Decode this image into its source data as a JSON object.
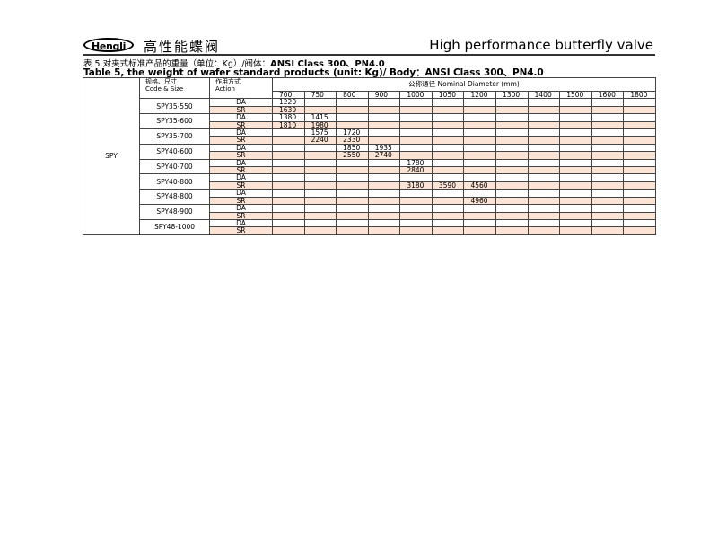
{
  "header": {
    "logo": "Hengli",
    "cn_title": "高性能蝶阀",
    "en_title": "High performance butterfly valve"
  },
  "caption": {
    "cn_prefix": "表 5 对夹式标准产品的重量（单位：Kg）/阀体：",
    "cn_suffix": "ANSI Class 300、PN4.0",
    "en": "Table 5, the weight of wafer standard products (unit: Kg)/ Body：ANSI Class 300、PN4.0"
  },
  "table": {
    "series": "SPY",
    "code_header_cn": "规格、尺寸",
    "code_header_en": "Code & Size",
    "action_header_cn": "作用方式",
    "action_header_en": "Action",
    "nd_header": "公称通径   Nominal Diameter (mm)",
    "sizes": [
      "700",
      "750",
      "800",
      "900",
      "1000",
      "1050",
      "1200",
      "1300",
      "1400",
      "1500",
      "1600",
      "1800"
    ],
    "colors": {
      "sr_row": "#fbe4d5"
    },
    "models": [
      {
        "code": "SPY35-550",
        "rows": [
          {
            "action": "DA",
            "values": [
              "1220",
              "",
              "",
              "",
              "",
              "",
              "",
              "",
              "",
              "",
              "",
              ""
            ]
          },
          {
            "action": "SR",
            "values": [
              "1630",
              "",
              "",
              "",
              "",
              "",
              "",
              "",
              "",
              "",
              "",
              ""
            ]
          }
        ]
      },
      {
        "code": "SPY35-600",
        "rows": [
          {
            "action": "DA",
            "values": [
              "1380",
              "1415",
              "",
              "",
              "",
              "",
              "",
              "",
              "",
              "",
              "",
              ""
            ]
          },
          {
            "action": "SR",
            "values": [
              "1810",
              "1980",
              "",
              "",
              "",
              "",
              "",
              "",
              "",
              "",
              "",
              ""
            ]
          }
        ]
      },
      {
        "code": "SPY35-700",
        "rows": [
          {
            "action": "DA",
            "values": [
              "",
              "1575",
              "1720",
              "",
              "",
              "",
              "",
              "",
              "",
              "",
              "",
              ""
            ]
          },
          {
            "action": "SR",
            "values": [
              "",
              "2240",
              "2330",
              "",
              "",
              "",
              "",
              "",
              "",
              "",
              "",
              ""
            ]
          }
        ]
      },
      {
        "code": "SPY40-600",
        "rows": [
          {
            "action": "DA",
            "values": [
              "",
              "",
              "1850",
              "1935",
              "",
              "",
              "",
              "",
              "",
              "",
              "",
              ""
            ]
          },
          {
            "action": "SR",
            "values": [
              "",
              "",
              "2550",
              "2740",
              "",
              "",
              "",
              "",
              "",
              "",
              "",
              ""
            ]
          }
        ]
      },
      {
        "code": "SPY40-700",
        "rows": [
          {
            "action": "DA",
            "values": [
              "",
              "",
              "",
              "",
              "1780",
              "",
              "",
              "",
              "",
              "",
              "",
              ""
            ]
          },
          {
            "action": "SR",
            "values": [
              "",
              "",
              "",
              "",
              "2840",
              "",
              "",
              "",
              "",
              "",
              "",
              ""
            ]
          }
        ]
      },
      {
        "code": "SPY40-800",
        "rows": [
          {
            "action": "DA",
            "values": [
              "",
              "",
              "",
              "",
              "",
              "",
              "",
              "",
              "",
              "",
              "",
              ""
            ]
          },
          {
            "action": "SR",
            "values": [
              "",
              "",
              "",
              "",
              "3180",
              "3590",
              "4560",
              "",
              "",
              "",
              "",
              ""
            ]
          }
        ]
      },
      {
        "code": "SPY48-800",
        "rows": [
          {
            "action": "DA",
            "values": [
              "",
              "",
              "",
              "",
              "",
              "",
              "",
              "",
              "",
              "",
              "",
              ""
            ]
          },
          {
            "action": "SR",
            "values": [
              "",
              "",
              "",
              "",
              "",
              "",
              "4960",
              "",
              "",
              "",
              "",
              ""
            ]
          }
        ]
      },
      {
        "code": "SPY48-900",
        "rows": [
          {
            "action": "DA",
            "values": [
              "",
              "",
              "",
              "",
              "",
              "",
              "",
              "",
              "",
              "",
              "",
              ""
            ]
          },
          {
            "action": "SR",
            "values": [
              "",
              "",
              "",
              "",
              "",
              "",
              "",
              "",
              "",
              "",
              "",
              ""
            ]
          }
        ]
      },
      {
        "code": "SPY48-1000",
        "rows": [
          {
            "action": "DA",
            "values": [
              "",
              "",
              "",
              "",
              "",
              "",
              "",
              "",
              "",
              "",
              "",
              ""
            ]
          },
          {
            "action": "SR",
            "values": [
              "",
              "",
              "",
              "",
              "",
              "",
              "",
              "",
              "",
              "",
              "",
              ""
            ]
          }
        ]
      }
    ]
  }
}
